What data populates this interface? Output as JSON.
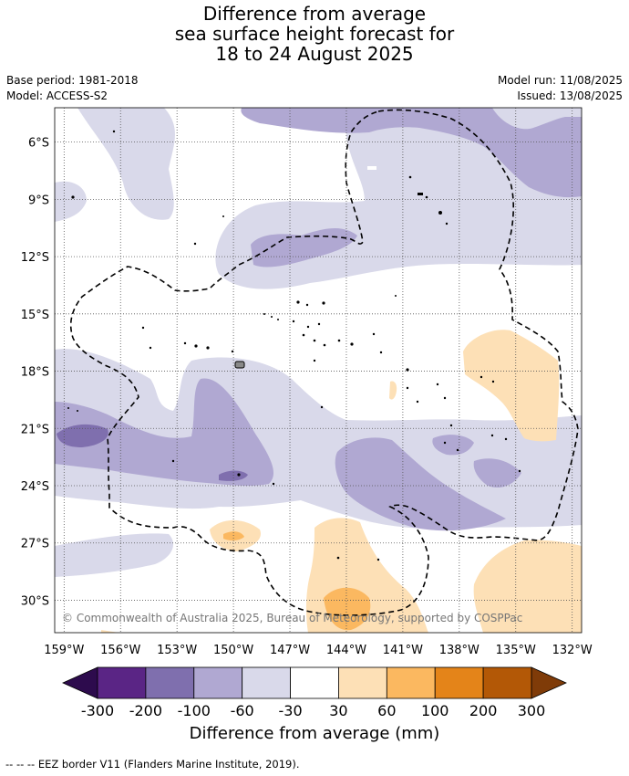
{
  "title": {
    "line1": "Difference from average",
    "line2": "sea surface height forecast for",
    "line3": "18 to 24 August 2025"
  },
  "meta": {
    "base_period": "Base period: 1981-2018",
    "model": "Model: ACCESS-S2",
    "model_run": "Model run: 11/08/2025",
    "issued": "Issued: 13/08/2025"
  },
  "map": {
    "lon_range": [
      -159.5,
      -131.5
    ],
    "lat_range": [
      -31.7,
      -4.2
    ],
    "lon_ticks": [
      -159,
      -156,
      -153,
      -150,
      -147,
      -144,
      -141,
      -138,
      -135,
      -132
    ],
    "lon_labels": [
      "159°W",
      "156°W",
      "153°W",
      "150°W",
      "147°W",
      "144°W",
      "141°W",
      "138°W",
      "135°W",
      "132°W"
    ],
    "lat_ticks": [
      -6,
      -9,
      -12,
      -15,
      -18,
      -21,
      -24,
      -27,
      -30
    ],
    "lat_labels": [
      "6°S",
      "9°S",
      "12°S",
      "15°S",
      "18°S",
      "21°S",
      "24°S",
      "27°S",
      "30°S"
    ],
    "copyright": "© Commonwealth of Australia 2025, Bureau of Meteorology, supported by COSPPac"
  },
  "colorbar": {
    "title": "Difference from average (mm)",
    "tick_labels": [
      "-300",
      "-200",
      "-100",
      "-60",
      "-30",
      "30",
      "60",
      "100",
      "200",
      "300"
    ],
    "colors": [
      "#5a2585",
      "#7f6fae",
      "#b0a8d2",
      "#d9d9ea",
      "#ffffff",
      "#fde0b6",
      "#fbb860",
      "#e48419",
      "#b35806"
    ],
    "under_color": "#2d0b4d",
    "over_color": "#7f3b08"
  },
  "footer": "--  --  -- EEZ border V11 (Flanders Marine Institute, 2019)."
}
